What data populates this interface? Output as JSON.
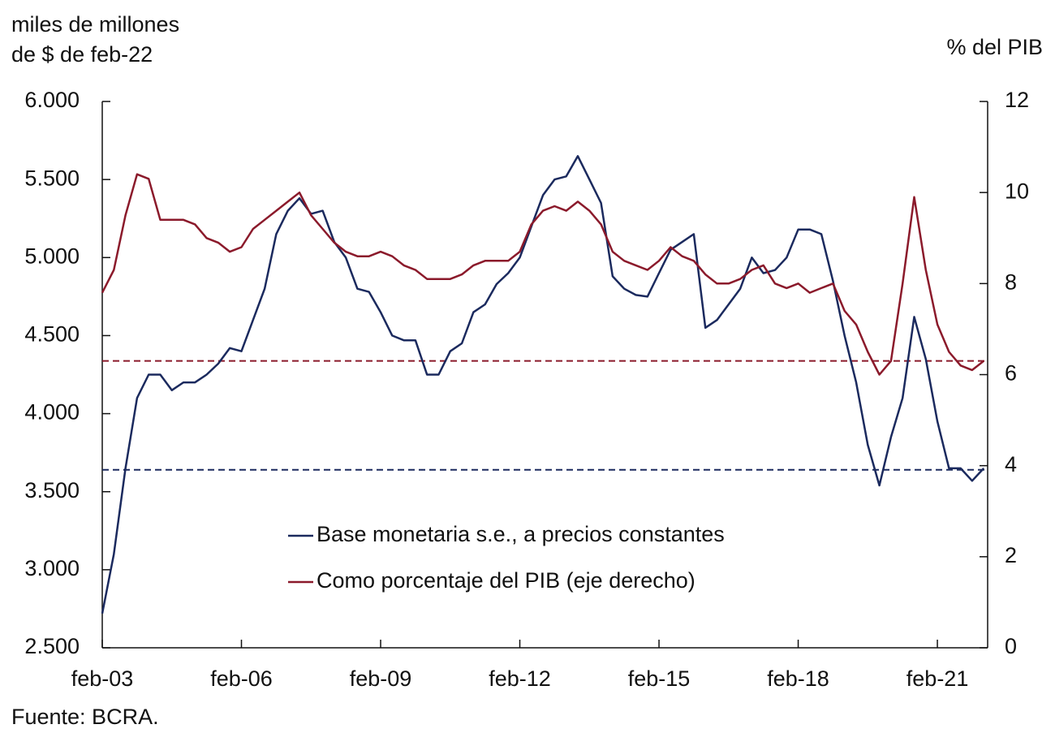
{
  "chart_data": {
    "type": "line",
    "y_title_lines": [
      "miles de millones",
      "de $ de feb-22"
    ],
    "y2_title": "% del PIB",
    "source": "Fuente: BCRA.",
    "x": [
      "2003-02",
      "2003-05",
      "2003-08",
      "2003-11",
      "2004-02",
      "2004-05",
      "2004-08",
      "2004-11",
      "2005-02",
      "2005-05",
      "2005-08",
      "2005-11",
      "2006-02",
      "2006-05",
      "2006-08",
      "2006-11",
      "2007-02",
      "2007-05",
      "2007-08",
      "2007-11",
      "2008-02",
      "2008-05",
      "2008-08",
      "2008-11",
      "2009-02",
      "2009-05",
      "2009-08",
      "2009-11",
      "2010-02",
      "2010-05",
      "2010-08",
      "2010-11",
      "2011-02",
      "2011-05",
      "2011-08",
      "2011-11",
      "2012-02",
      "2012-05",
      "2012-08",
      "2012-11",
      "2013-02",
      "2013-05",
      "2013-08",
      "2013-11",
      "2014-02",
      "2014-05",
      "2014-08",
      "2014-11",
      "2015-02",
      "2015-05",
      "2015-08",
      "2015-11",
      "2016-02",
      "2016-05",
      "2016-08",
      "2016-11",
      "2017-02",
      "2017-05",
      "2017-08",
      "2017-11",
      "2018-02",
      "2018-05",
      "2018-08",
      "2018-11",
      "2019-02",
      "2019-05",
      "2019-08",
      "2019-11",
      "2020-02",
      "2020-05",
      "2020-08",
      "2020-11",
      "2021-02",
      "2021-05",
      "2021-08",
      "2021-11",
      "2022-02"
    ],
    "series": [
      {
        "name": "Base monetaria s.e., a precios constantes",
        "color": "#1b2a5e",
        "axis": "y",
        "values": [
          2720,
          3100,
          3650,
          4100,
          4250,
          4250,
          4150,
          4200,
          4200,
          4250,
          4320,
          4420,
          4400,
          4600,
          4800,
          5150,
          5300,
          5380,
          5280,
          5300,
          5100,
          5000,
          4800,
          4780,
          4650,
          4500,
          4470,
          4470,
          4250,
          4250,
          4400,
          4450,
          4650,
          4700,
          4830,
          4900,
          5000,
          5200,
          5400,
          5500,
          5520,
          5650,
          5500,
          5350,
          4880,
          4800,
          4760,
          4750,
          4900,
          5050,
          5100,
          5150,
          4550,
          4600,
          4700,
          4800,
          5000,
          4900,
          4920,
          5000,
          5180,
          5180,
          5150,
          4850,
          4500,
          4200,
          3800,
          3540,
          3850,
          4100,
          4620,
          4350,
          3950,
          3650,
          3650,
          3570,
          3650
        ]
      },
      {
        "name": "Como porcentaje del PIB (eje derecho)",
        "color": "#8b1a2b",
        "axis": "y2",
        "values": [
          7.8,
          8.3,
          9.5,
          10.4,
          10.3,
          9.4,
          9.4,
          9.4,
          9.3,
          9.0,
          8.9,
          8.7,
          8.8,
          9.2,
          9.4,
          9.6,
          9.8,
          10.0,
          9.5,
          9.2,
          8.9,
          8.7,
          8.6,
          8.6,
          8.7,
          8.6,
          8.4,
          8.3,
          8.1,
          8.1,
          8.1,
          8.2,
          8.4,
          8.5,
          8.5,
          8.5,
          8.7,
          9.3,
          9.6,
          9.7,
          9.6,
          9.8,
          9.6,
          9.3,
          8.7,
          8.5,
          8.4,
          8.3,
          8.5,
          8.8,
          8.6,
          8.5,
          8.2,
          8.0,
          8.0,
          8.1,
          8.3,
          8.4,
          8.0,
          7.9,
          8.0,
          7.8,
          7.9,
          8.0,
          7.4,
          7.1,
          6.5,
          6.0,
          6.3,
          8.0,
          9.9,
          8.3,
          7.1,
          6.5,
          6.2,
          6.1,
          6.3
        ]
      }
    ],
    "reference_lines": [
      {
        "value": 3640,
        "axis": "y",
        "color": "#1b2a5e"
      },
      {
        "value": 6.3,
        "axis": "y2",
        "color": "#8b1a2b"
      }
    ],
    "xlim": [
      "2003-02",
      "2022-03"
    ],
    "xticks": [
      {
        "value": "2003-02",
        "label": "feb-03"
      },
      {
        "value": "2006-02",
        "label": "feb-06"
      },
      {
        "value": "2009-02",
        "label": "feb-09"
      },
      {
        "value": "2012-02",
        "label": "feb-12"
      },
      {
        "value": "2015-02",
        "label": "feb-15"
      },
      {
        "value": "2018-02",
        "label": "feb-18"
      },
      {
        "value": "2021-02",
        "label": "feb-21"
      }
    ],
    "ylim": [
      2500,
      6000
    ],
    "yticks": [
      {
        "value": 2500,
        "label": "2.500"
      },
      {
        "value": 3000,
        "label": "3.000"
      },
      {
        "value": 3500,
        "label": "3.500"
      },
      {
        "value": 4000,
        "label": "4.000"
      },
      {
        "value": 4500,
        "label": "4.500"
      },
      {
        "value": 5000,
        "label": "5.000"
      },
      {
        "value": 5500,
        "label": "5.500"
      },
      {
        "value": 6000,
        "label": "6.000"
      }
    ],
    "y2lim": [
      0,
      12
    ],
    "y2ticks": [
      0,
      2,
      4,
      6,
      8,
      10,
      12
    ]
  }
}
